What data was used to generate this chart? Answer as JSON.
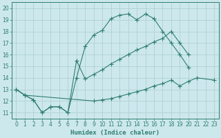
{
  "bg_color": "#cce8ed",
  "line_color": "#2e7d6e",
  "grid_color": "#b0d8de",
  "xlabel": "Humidex (Indice chaleur)",
  "xlim": [
    -0.5,
    23.5
  ],
  "ylim": [
    10.5,
    20.5
  ],
  "yticks": [
    11,
    12,
    13,
    14,
    15,
    16,
    17,
    18,
    19,
    20
  ],
  "xticks": [
    0,
    1,
    2,
    3,
    4,
    5,
    6,
    7,
    8,
    9,
    10,
    11,
    12,
    13,
    14,
    15,
    16,
    17,
    18,
    19,
    20,
    21,
    22,
    23
  ],
  "line_a_x": [
    0,
    1,
    2,
    3,
    4,
    5,
    6,
    7,
    8,
    9,
    10,
    11,
    12,
    13,
    14,
    15,
    16,
    17,
    18,
    19,
    20
  ],
  "line_a_y": [
    13.0,
    12.5,
    12.1,
    11.0,
    11.5,
    11.5,
    11.0,
    14.0,
    16.7,
    17.7,
    18.1,
    19.1,
    19.4,
    19.5,
    19.0,
    19.5,
    19.1,
    18.0,
    17.0,
    16.0,
    14.9
  ],
  "line_b_x": [
    0,
    1,
    2,
    3,
    4,
    5,
    6,
    7,
    8,
    9,
    10,
    11,
    12,
    13,
    14,
    15,
    16,
    17,
    18,
    19,
    20
  ],
  "line_b_y": [
    13.0,
    12.5,
    12.1,
    11.0,
    11.5,
    11.5,
    11.0,
    15.5,
    13.9,
    14.3,
    14.7,
    15.2,
    15.6,
    16.0,
    16.4,
    16.7,
    17.1,
    17.4,
    18.0,
    17.0,
    16.0
  ],
  "line_c_x": [
    0,
    1,
    9,
    10,
    11,
    12,
    13,
    14,
    15,
    16,
    17,
    18,
    19,
    20,
    21,
    23
  ],
  "line_c_y": [
    13.0,
    12.5,
    12.0,
    12.1,
    12.2,
    12.4,
    12.6,
    12.8,
    13.0,
    13.3,
    13.5,
    13.8,
    13.3,
    13.7,
    14.0,
    13.8
  ]
}
